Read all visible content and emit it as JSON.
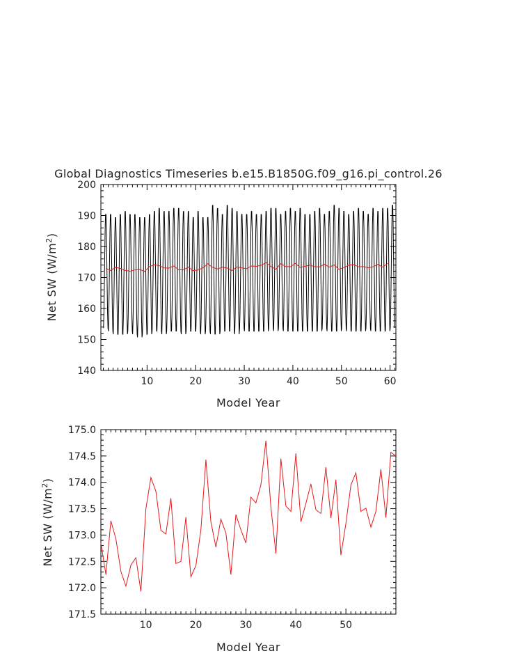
{
  "title": "Global Diagnostics Timeseries b.e15.B1850G.f09_g16.pi_control.26",
  "chart_data": [
    {
      "type": "line",
      "xlabel": "Model Year",
      "ylabel": "Net SW (W/m",
      "ylabel_sup": "2",
      "ylabel_close": ")",
      "xlim": [
        0.5,
        61.2
      ],
      "ylim": [
        140,
        200
      ],
      "xticks": [
        10,
        20,
        30,
        40,
        50,
        60
      ],
      "xtick_labels": [
        "10",
        "20",
        "30",
        "40",
        "50",
        "60"
      ],
      "yticks": [
        140,
        150,
        160,
        170,
        180,
        190,
        200
      ],
      "ytick_labels": [
        "140",
        "150",
        "160",
        "170",
        "180",
        "190",
        "200"
      ],
      "grid": false,
      "series": [
        {
          "color": "#000000",
          "monthly_annual_peaks": [
            191,
            191,
            190,
            191,
            192,
            191,
            191,
            190,
            190,
            191,
            192,
            193,
            192,
            192,
            193,
            193,
            192,
            192,
            190,
            192,
            190,
            190,
            194,
            193,
            191,
            194,
            193,
            192,
            191,
            191,
            192,
            191,
            191,
            192,
            193,
            193,
            191,
            192,
            193,
            192,
            193,
            191,
            191,
            192,
            193,
            191,
            192,
            194,
            193,
            192,
            191,
            192,
            193,
            192,
            191,
            193,
            192,
            193,
            193,
            194
          ],
          "monthly_annual_troughs": [
            153,
            152,
            151,
            151,
            151,
            152,
            151,
            150,
            151,
            151,
            152,
            152,
            151,
            152,
            152,
            152,
            151,
            152,
            152,
            152,
            151,
            152,
            151,
            151,
            152,
            152,
            152,
            151,
            153,
            152,
            152,
            152,
            152,
            152,
            153,
            152,
            153,
            152,
            152,
            152,
            152,
            152,
            152,
            152,
            152,
            153,
            152,
            152,
            152,
            153,
            152,
            152,
            152,
            152,
            153,
            152,
            152,
            152,
            152,
            153
          ]
        },
        {
          "color": "#e3191c",
          "values": [
            172.85,
            172.25,
            173.27,
            172.93,
            172.31,
            172.03,
            172.43,
            172.57,
            171.93,
            173.5,
            174.09,
            173.83,
            173.09,
            173.02,
            173.7,
            172.46,
            172.5,
            173.34,
            172.21,
            172.42,
            173.1,
            174.43,
            173.25,
            172.77,
            173.3,
            173.04,
            172.25,
            173.39,
            173.1,
            172.85,
            173.72,
            173.61,
            173.95,
            174.79,
            173.53,
            172.65,
            174.45,
            173.55,
            173.45,
            174.55,
            173.25,
            173.6,
            173.97,
            173.48,
            173.41,
            174.29,
            173.32,
            174.05,
            172.62,
            173.22,
            173.95,
            174.18,
            173.45,
            173.51,
            173.15,
            173.45,
            174.25,
            173.33,
            174.57
          ]
        }
      ]
    },
    {
      "type": "line",
      "xlabel": "Model Year",
      "ylabel": "Net SW (W/m",
      "ylabel_sup": "2",
      "ylabel_close": ")",
      "xlim": [
        1,
        60
      ],
      "ylim": [
        171.5,
        175.0
      ],
      "xticks": [
        10,
        20,
        30,
        40,
        50
      ],
      "xtick_labels": [
        "10",
        "20",
        "30",
        "40",
        "50"
      ],
      "yticks": [
        171.5,
        172.0,
        172.5,
        173.0,
        173.5,
        174.0,
        174.5,
        175.0
      ],
      "ytick_labels": [
        "171.5",
        "172.0",
        "172.5",
        "173.0",
        "173.5",
        "174.0",
        "174.5",
        "175.0"
      ],
      "grid": false,
      "series": [
        {
          "color": "#e3191c",
          "x": [
            1,
            2,
            3,
            4,
            5,
            6,
            7,
            8,
            9,
            10,
            11,
            12,
            13,
            14,
            15,
            16,
            17,
            18,
            19,
            20,
            21,
            22,
            23,
            24,
            25,
            26,
            27,
            28,
            29,
            30,
            31,
            32,
            33,
            34,
            35,
            36,
            37,
            38,
            39,
            40,
            41,
            42,
            43,
            44,
            45,
            46,
            47,
            48,
            49,
            50,
            51,
            52,
            53,
            54,
            55,
            56,
            57,
            58,
            59,
            60
          ],
          "values": [
            172.85,
            172.25,
            173.27,
            172.93,
            172.31,
            172.03,
            172.43,
            172.57,
            171.93,
            173.5,
            174.09,
            173.83,
            173.09,
            173.02,
            173.7,
            172.46,
            172.5,
            173.34,
            172.21,
            172.42,
            173.1,
            174.43,
            173.25,
            172.77,
            173.3,
            173.04,
            172.25,
            173.39,
            173.1,
            172.85,
            173.72,
            173.61,
            173.95,
            174.79,
            173.53,
            172.65,
            174.45,
            173.55,
            173.45,
            174.55,
            173.25,
            173.6,
            173.97,
            173.48,
            173.41,
            174.29,
            173.32,
            174.05,
            172.62,
            173.22,
            173.95,
            174.18,
            173.45,
            173.51,
            173.15,
            173.45,
            174.25,
            173.33,
            174.57,
            174.5
          ]
        }
      ]
    }
  ]
}
